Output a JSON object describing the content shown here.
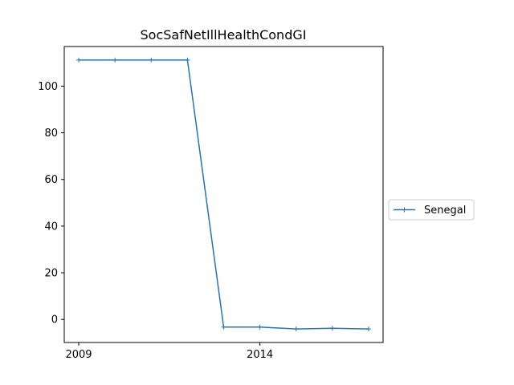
{
  "chart_data": {
    "type": "line",
    "title": "SocSafNetIllHealthCondGI",
    "xlabel": "",
    "ylabel": "",
    "x": [
      2009,
      2010,
      2011,
      2012,
      2013,
      2014,
      2015,
      2016,
      2017
    ],
    "series": [
      {
        "name": "Senegal",
        "values": [
          111.2,
          111.2,
          111.2,
          111.2,
          -3.3,
          -3.3,
          -4.1,
          -3.8,
          -4.1
        ],
        "color": "#1f77b4",
        "marker": "+"
      }
    ],
    "x_ticks": [
      2009,
      2014
    ],
    "x_tick_labels": [
      "2009",
      "2014"
    ],
    "y_ticks": [
      0,
      20,
      40,
      60,
      80,
      100
    ],
    "y_tick_labels": [
      "0",
      "20",
      "40",
      "60",
      "80",
      "100"
    ],
    "xlim": [
      2008.6,
      2017.4
    ],
    "ylim": [
      -9.9,
      117.0
    ],
    "grid": false,
    "legend_position": "outside-right"
  }
}
